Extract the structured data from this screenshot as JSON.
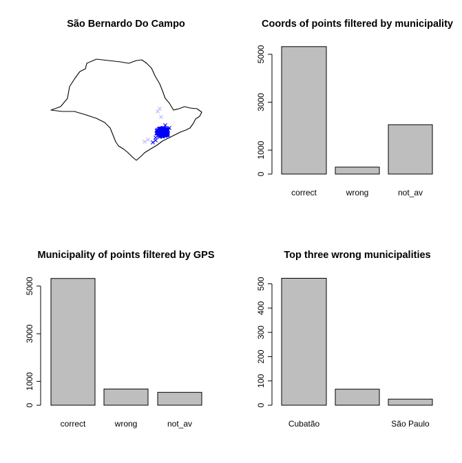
{
  "chart_data": [
    {
      "type": "scatter",
      "title": "São Bernardo Do Campo",
      "note": "map of São Paulo state outline with point cloud of coordinates (crosses)",
      "colors": {
        "points": "#0000ff",
        "faint_points": "#b8b8ff",
        "outline": "#000000"
      }
    },
    {
      "type": "bar",
      "title": "Coords of points filtered by municipality",
      "categories": [
        "correct",
        "wrong",
        "not_av"
      ],
      "values": [
        5320,
        290,
        2060
      ],
      "ylim": [
        0,
        5400
      ],
      "yticks": [
        "0",
        "1000",
        "3000",
        "5000"
      ],
      "color": "#bebebe"
    },
    {
      "type": "bar",
      "title": "Municipality of points filtered by GPS",
      "categories": [
        "correct",
        "wrong",
        "not_av"
      ],
      "values": [
        5320,
        680,
        540
      ],
      "ylim": [
        0,
        5400
      ],
      "yticks": [
        "0",
        "1000",
        "3000",
        "5000"
      ],
      "color": "#bebebe"
    },
    {
      "type": "bar",
      "title": "Top three wrong municipalities",
      "categories": [
        "Cubatão",
        "",
        "São Paulo"
      ],
      "values": [
        523,
        66,
        25
      ],
      "ylim": [
        0,
        530
      ],
      "yticks": [
        "0",
        "100",
        "200",
        "300",
        "400",
        "500"
      ],
      "color": "#bebebe"
    }
  ]
}
